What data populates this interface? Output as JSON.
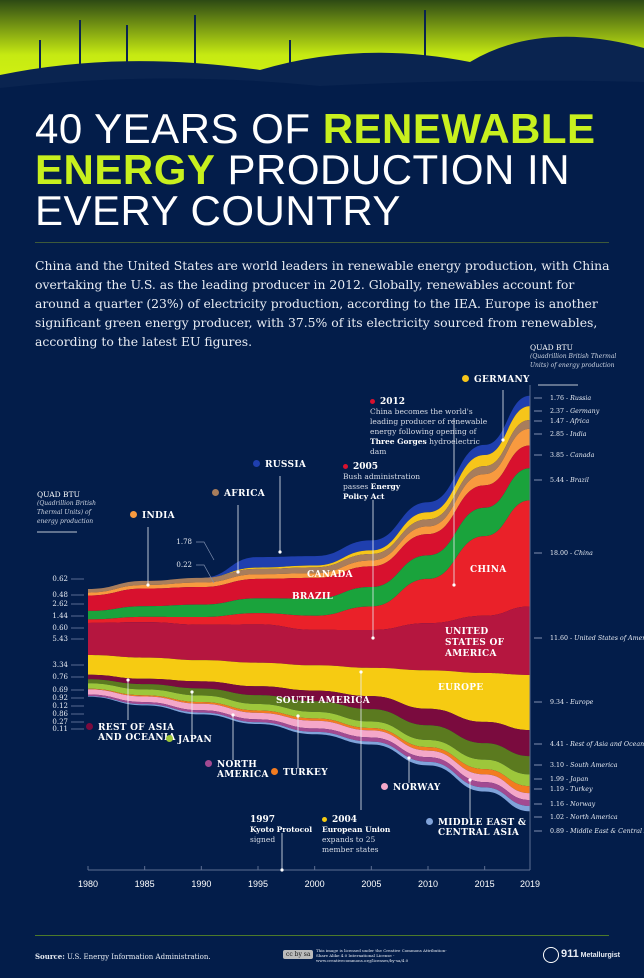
{
  "title": {
    "line1_plain": "40 YEARS OF ",
    "line1_hl": "RENEWABLE",
    "line2_hl": "ENERGY",
    "line2_plain": " PRODUCTION IN",
    "line3": "EVERY COUNTRY"
  },
  "description": "China and the United States are world leaders in renewable energy production, with China overtaking the U.S. as the leading producer in 2012. Globally, renewables account for around a quarter (23%) of electricity production, according to the IEA. Europe is another significant green energy producer, with 37.5% of its electricity sourced from renewables, according to the latest EU figures.",
  "unit": {
    "title": "QUAD BTU",
    "subtitle": "(Quadrillion British Thermal Units) of energy production"
  },
  "colors": {
    "background": "#031d4a",
    "accent": "#c8f01e"
  },
  "chart_data": {
    "type": "area",
    "subtype": "streamgraph",
    "ylabel": "QUAD BTU (Quadrillion British Thermal Units) of energy production",
    "x": [
      1980,
      1985,
      1990,
      1995,
      2000,
      2005,
      2010,
      2015,
      2019
    ],
    "x_ticks": [
      "1980",
      "1985",
      "1990",
      "1995",
      "2000",
      "2005",
      "2010",
      "2015",
      "2019"
    ],
    "series": [
      {
        "name": "Russia",
        "label": "RUSSIA",
        "right_label": "Russia",
        "color": "#1f3fae",
        "values": [
          0,
          0,
          0,
          1.78,
          1.6,
          1.7,
          1.7,
          1.7,
          1.76
        ]
      },
      {
        "name": "Germany",
        "label": "GERMANY",
        "right_label": "Germany",
        "color": "#f6c51a",
        "values": [
          0,
          0,
          0,
          0.22,
          0.3,
          0.6,
          1.2,
          1.9,
          2.37
        ]
      },
      {
        "name": "Africa",
        "label": "AFRICA",
        "right_label": "Africa",
        "color": "#a87d5c",
        "values": [
          0.62,
          0.7,
          0.8,
          0.9,
          1.0,
          1.1,
          1.2,
          1.35,
          1.47
        ]
      },
      {
        "name": "India",
        "label": "INDIA",
        "right_label": "India",
        "color": "#f89a3f",
        "values": [
          0.48,
          0.6,
          0.75,
          0.8,
          0.8,
          1.0,
          1.3,
          1.9,
          2.85
        ]
      },
      {
        "name": "Canada",
        "label": "CANADA",
        "right_label": "Canada",
        "color": "#d8112e",
        "values": [
          2.62,
          3.0,
          3.0,
          3.3,
          3.5,
          3.5,
          3.6,
          3.8,
          3.85
        ]
      },
      {
        "name": "Brazil",
        "label": "BRAZIL",
        "right_label": "Brazil",
        "color": "#1aa33c",
        "values": [
          1.44,
          1.8,
          2.1,
          2.5,
          2.9,
          3.3,
          4.0,
          4.8,
          5.44
        ]
      },
      {
        "name": "China",
        "label": "CHINA",
        "right_label": "China",
        "color": "#ea2129",
        "values": [
          0.6,
          0.9,
          1.3,
          1.9,
          2.4,
          4.0,
          7.5,
          13.5,
          18.0
        ]
      },
      {
        "name": "United States of America",
        "label": "UNITED STATES OF AMERICA",
        "right_label": "United States of America",
        "color": "#b5163f",
        "values": [
          5.43,
          6.0,
          6.0,
          6.5,
          6.0,
          6.4,
          8.0,
          9.7,
          11.6
        ]
      },
      {
        "name": "Europe",
        "label": "EUROPE",
        "right_label": "Europe",
        "color": "#f6cb12",
        "values": [
          3.34,
          3.6,
          3.6,
          4.0,
          4.3,
          4.8,
          6.5,
          8.3,
          9.34
        ]
      },
      {
        "name": "Rest of Asia and Oceania",
        "label": "REST OF ASIA AND OCEANIA",
        "right_label": "Rest of Asia and Oceania",
        "color": "#7a0b3e",
        "values": [
          0.76,
          0.9,
          1.2,
          1.5,
          1.8,
          2.2,
          2.8,
          3.6,
          4.41
        ]
      },
      {
        "name": "South America",
        "label": "SOUTH AMERICA",
        "right_label": "South America",
        "color": "#5b7a1f",
        "values": [
          0.69,
          0.9,
          1.2,
          1.5,
          1.8,
          2.1,
          2.5,
          2.8,
          3.1
        ]
      },
      {
        "name": "Japan",
        "label": "JAPAN",
        "right_label": "Japan",
        "color": "#9dc73b",
        "values": [
          0.92,
          1.0,
          1.1,
          1.1,
          1.1,
          1.1,
          1.2,
          1.6,
          1.99
        ]
      },
      {
        "name": "Turkey",
        "label": "TURKEY",
        "right_label": "Turkey",
        "color": "#f37b20",
        "values": [
          0.12,
          0.2,
          0.3,
          0.4,
          0.4,
          0.4,
          0.6,
          0.9,
          1.19
        ]
      },
      {
        "name": "Norway",
        "label": "NORWAY",
        "right_label": "Norway",
        "color": "#f4a7c9",
        "values": [
          0.86,
          0.95,
          1.1,
          1.1,
          1.3,
          1.2,
          1.1,
          1.3,
          1.16
        ]
      },
      {
        "name": "North America",
        "label": "NORTH AMERICA",
        "right_label": "North America",
        "color": "#a24a91",
        "values": [
          0.27,
          0.35,
          0.4,
          0.5,
          0.6,
          0.7,
          0.8,
          0.9,
          1.02
        ]
      },
      {
        "name": "Middle East & Central Asia",
        "label": "MIDDLE EAST & CENTRAL ASIA",
        "right_label": "Middle East & Central Asia",
        "color": "#80a3da",
        "values": [
          0.11,
          0.2,
          0.3,
          0.3,
          0.4,
          0.5,
          0.6,
          0.7,
          0.89
        ]
      }
    ],
    "start_labels": [
      "0.62",
      "0.48",
      "2.62",
      "1.44",
      "0.60",
      "5.43",
      "3.34",
      "0.76",
      "0.69",
      "0.92",
      "0.12",
      "0.86",
      "0.27",
      "0.11"
    ],
    "mid_labels": [
      "1.78",
      "0.22"
    ],
    "end_labels": [
      "1.76",
      "2.37",
      "1.47",
      "2.85",
      "3.85",
      "5.44",
      "18.00",
      "11.60",
      "9.34",
      "4.41",
      "3.10",
      "1.99",
      "1.19",
      "1.16",
      "1.02",
      "0.89"
    ]
  },
  "events": [
    {
      "year": "2012",
      "text": "China becomes the world's leading producer of renewable energy following opening of ",
      "bold": "Three Gorges",
      "tail": " hydroelectric dam"
    },
    {
      "year": "2005",
      "text": "Bush administration passes ",
      "bold": "Energy Policy Act",
      "tail": ""
    },
    {
      "year": "1997",
      "bold": "Kyoto Protocol",
      "tail": "signed"
    },
    {
      "year": "2004",
      "bold": "European Union",
      "tail": "expands to 25 member states"
    }
  ],
  "footer": {
    "source_label": "Source:",
    "source": "U.S. Energy Information Administration.",
    "license": "This image is licensed under the Creative Commons Attribution-Share Alike 4.0 International License - www.creativecommons.org/licenses/by-sa/4.0",
    "license_badge": "cc by sa",
    "brand_number": "911",
    "brand_name": "Metallurgist"
  }
}
